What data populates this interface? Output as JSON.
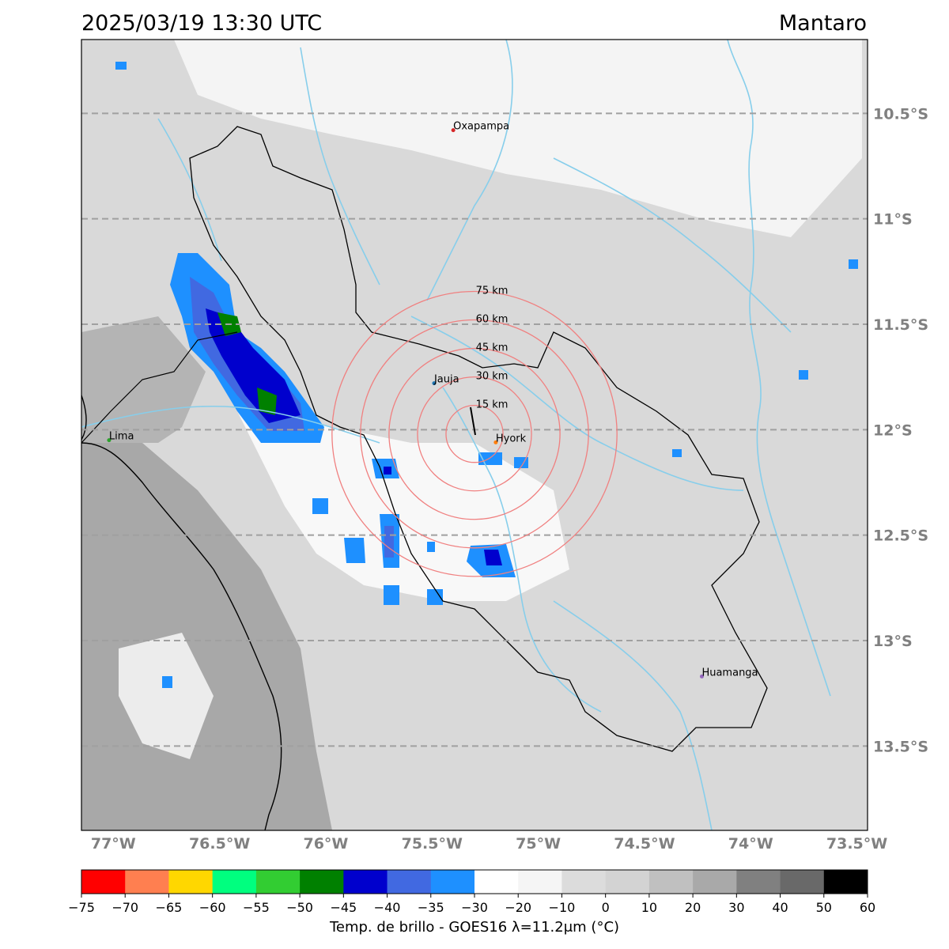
{
  "header": {
    "timestamp": "2025/03/19 13:30 UTC",
    "region": "Mantaro"
  },
  "map": {
    "extent": {
      "lon_min": -77.15,
      "lon_max": -73.45,
      "lat_min": -13.9,
      "lat_max": -10.15
    },
    "lat_gridlines": [
      {
        "lat": -10.5,
        "label": "10.5°S"
      },
      {
        "lat": -11.0,
        "label": "11°S"
      },
      {
        "lat": -11.5,
        "label": "11.5°S"
      },
      {
        "lat": -12.0,
        "label": "12°S"
      },
      {
        "lat": -12.5,
        "label": "12.5°S"
      },
      {
        "lat": -13.0,
        "label": "13°S"
      },
      {
        "lat": -13.5,
        "label": "13.5°S"
      }
    ],
    "lon_ticks": [
      {
        "lon": -77.0,
        "label": "77°W"
      },
      {
        "lon": -76.5,
        "label": "76.5°W"
      },
      {
        "lon": -76.0,
        "label": "76°W"
      },
      {
        "lon": -75.5,
        "label": "75.5°W"
      },
      {
        "lon": -75.0,
        "label": "75°W"
      },
      {
        "lon": -74.5,
        "label": "74.5°W"
      },
      {
        "lon": -74.0,
        "label": "74°W"
      },
      {
        "lon": -73.5,
        "label": "73.5°W"
      }
    ],
    "cities": [
      {
        "name": "Oxapampa",
        "lon": -75.4,
        "lat": -10.58,
        "color": "#d62728"
      },
      {
        "name": "Jauja",
        "lon": -75.49,
        "lat": -11.78,
        "color": "#1f77b4"
      },
      {
        "name": "Hyork",
        "lon": -75.2,
        "lat": -12.06,
        "color": "#ff7f0e"
      },
      {
        "name": "Lima",
        "lon": -77.02,
        "lat": -12.05,
        "color": "#2ca02c"
      },
      {
        "name": "Huamanga",
        "lon": -74.23,
        "lat": -13.17,
        "color": "#9467bd"
      }
    ],
    "radar_center": {
      "lon": -75.3,
      "lat": -12.02
    },
    "range_rings": [
      {
        "radius_km": 15,
        "label": "15 km"
      },
      {
        "radius_km": 30,
        "label": "30 km"
      },
      {
        "radius_km": 45,
        "label": "45 km"
      },
      {
        "radius_km": 60,
        "label": "60 km"
      },
      {
        "radius_km": 75,
        "label": "75 km"
      }
    ],
    "colors": {
      "ring": "#f08080",
      "river": "#87ceeb",
      "grid": "#a0a0a0",
      "basin_outline": "#000000"
    }
  },
  "colorbar": {
    "label": "Temp. de brillo - GOES16 λ=11.2μm (°C)",
    "bins": [
      {
        "from": -75,
        "to": -70,
        "color": "#ff0000"
      },
      {
        "from": -70,
        "to": -65,
        "color": "#ff7f50"
      },
      {
        "from": -65,
        "to": -60,
        "color": "#ffd700"
      },
      {
        "from": -60,
        "to": -55,
        "color": "#00ff7f"
      },
      {
        "from": -55,
        "to": -50,
        "color": "#32cd32"
      },
      {
        "from": -50,
        "to": -45,
        "color": "#008000"
      },
      {
        "from": -45,
        "to": -40,
        "color": "#0000cd"
      },
      {
        "from": -40,
        "to": -35,
        "color": "#4169e1"
      },
      {
        "from": -35,
        "to": -30,
        "color": "#1e90ff"
      },
      {
        "from": -30,
        "to": -20,
        "color": "#ffffff"
      },
      {
        "from": -20,
        "to": -10,
        "color": "#f5f5f5"
      },
      {
        "from": -10,
        "to": 0,
        "color": "#dcdcdc"
      },
      {
        "from": 0,
        "to": 10,
        "color": "#d3d3d3"
      },
      {
        "from": 10,
        "to": 20,
        "color": "#c0c0c0"
      },
      {
        "from": 20,
        "to": 30,
        "color": "#a9a9a9"
      },
      {
        "from": 30,
        "to": 40,
        "color": "#808080"
      },
      {
        "from": 40,
        "to": 50,
        "color": "#696969"
      },
      {
        "from": 50,
        "to": 60,
        "color": "#000000"
      }
    ],
    "tick_labels": [
      "−75",
      "−70",
      "−65",
      "−60",
      "−55",
      "−50",
      "−45",
      "−40",
      "−35",
      "−30",
      "−20",
      "−10",
      "0",
      "10",
      "20",
      "30",
      "40",
      "50",
      "60"
    ]
  }
}
